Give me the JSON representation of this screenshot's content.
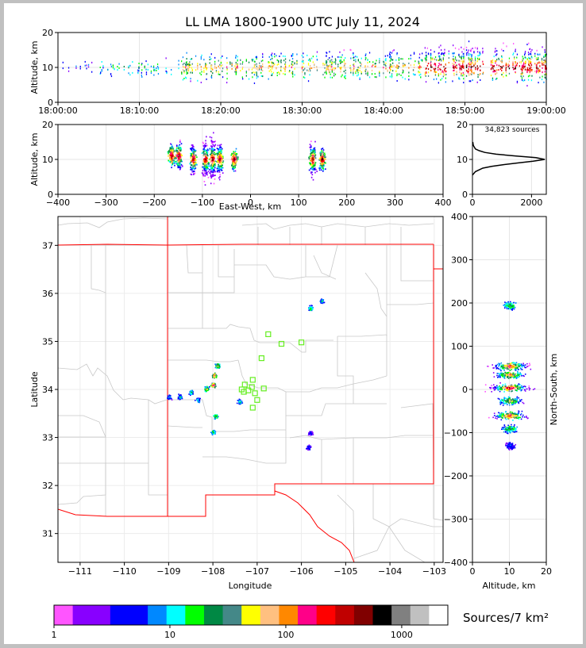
{
  "chart_data": [
    {
      "type": "heatmap",
      "panel": "altitude-time",
      "title": "LL LMA 1800-1900 UTC July 11, 2024",
      "ylabel": "Altitude, km",
      "x_tick_labels": [
        "18:00:00",
        "18:10:00",
        "18:20:00",
        "18:30:00",
        "18:40:00",
        "18:50:00",
        "19:00:00"
      ],
      "x_range_minutes": [
        0,
        60
      ],
      "ylim": [
        0,
        20
      ],
      "y_ticks": [
        0,
        10,
        20
      ],
      "grid": true,
      "activity": [
        {
          "t": [
            0,
            5
          ],
          "alt": [
            7,
            13
          ],
          "density": "sparse"
        },
        {
          "t": [
            5,
            15
          ],
          "alt": [
            6,
            13
          ],
          "density": "light"
        },
        {
          "t": [
            15,
            25
          ],
          "alt": [
            5,
            15
          ],
          "density": "moderate"
        },
        {
          "t": [
            25,
            35
          ],
          "alt": [
            5,
            16
          ],
          "density": "moderate"
        },
        {
          "t": [
            35,
            45
          ],
          "alt": [
            5,
            16
          ],
          "density": "moderate"
        },
        {
          "t": [
            45,
            60
          ],
          "alt": [
            4,
            18
          ],
          "density": "heavy"
        }
      ]
    },
    {
      "type": "heatmap",
      "panel": "altitude-east-west",
      "xlabel": "East-West, km",
      "ylabel": "Altitude, km",
      "xlim": [
        -400,
        400
      ],
      "x_ticks": [
        -400,
        -300,
        -200,
        -100,
        0,
        100,
        200,
        300,
        400
      ],
      "ylim": [
        0,
        20
      ],
      "y_ticks": [
        0,
        10,
        20
      ],
      "grid": true,
      "clusters": [
        {
          "x": -165,
          "alt_min": 8,
          "alt_max": 17,
          "peak": 11
        },
        {
          "x": -150,
          "alt_min": 8,
          "alt_max": 18,
          "peak": 11
        },
        {
          "x": -120,
          "alt_min": 6,
          "alt_max": 19,
          "peak": 10
        },
        {
          "x": -95,
          "alt_min": 2,
          "alt_max": 19,
          "peak": 10
        },
        {
          "x": -80,
          "alt_min": 1,
          "alt_max": 18,
          "peak": 10
        },
        {
          "x": -65,
          "alt_min": 3,
          "alt_max": 16,
          "peak": 10
        },
        {
          "x": -35,
          "alt_min": 6,
          "alt_max": 14,
          "peak": 10
        },
        {
          "x": 128,
          "alt_min": 5,
          "alt_max": 18,
          "peak": 10
        },
        {
          "x": 148,
          "alt_min": 7,
          "alt_max": 15,
          "peak": 10
        }
      ]
    },
    {
      "type": "line",
      "panel": "altitude-histogram",
      "annotation": "34,823 sources",
      "xlim": [
        0,
        2500
      ],
      "x_ticks": [
        0,
        2000
      ],
      "ylim": [
        0,
        20
      ],
      "y_ticks": [
        0,
        10,
        20
      ],
      "grid": true,
      "series": [
        {
          "alt": [
            5.5,
            6.5,
            7.5,
            8.0,
            8.5,
            9.0,
            9.5,
            10.0,
            10.5,
            11.0,
            11.5,
            12.0,
            12.5,
            13.0,
            14.0,
            15.0
          ],
          "count": [
            0,
            100,
            350,
            650,
            1050,
            1550,
            2050,
            2450,
            2150,
            1450,
            800,
            420,
            230,
            100,
            30,
            10
          ]
        }
      ]
    },
    {
      "type": "scatter",
      "panel": "plan-view-map",
      "xlabel": "Longitude",
      "ylabel": "Latitude",
      "xlim": [
        -111.5,
        -102.8
      ],
      "x_ticks": [
        -111,
        -110,
        -109,
        -108,
        -107,
        -106,
        -105,
        -104,
        -103
      ],
      "ylim": [
        30.4,
        37.6
      ],
      "y_ticks": [
        31,
        32,
        33,
        34,
        35,
        36,
        37
      ],
      "grid": true,
      "lightning_clusters": [
        {
          "lon": -108.75,
          "lat": 33.85,
          "intensity": 0.35
        },
        {
          "lon": -108.5,
          "lat": 33.95,
          "intensity": 0.4
        },
        {
          "lon": -108.35,
          "lat": 33.78,
          "intensity": 0.35
        },
        {
          "lon": -108.15,
          "lat": 34.02,
          "intensity": 0.6
        },
        {
          "lon": -108.0,
          "lat": 34.1,
          "intensity": 0.8
        },
        {
          "lon": -107.98,
          "lat": 34.3,
          "intensity": 0.75
        },
        {
          "lon": -107.9,
          "lat": 34.5,
          "intensity": 0.6
        },
        {
          "lon": -107.95,
          "lat": 33.45,
          "intensity": 0.5
        },
        {
          "lon": -108.0,
          "lat": 33.12,
          "intensity": 0.45
        },
        {
          "lon": -107.4,
          "lat": 33.75,
          "intensity": 0.35
        },
        {
          "lon": -105.8,
          "lat": 35.7,
          "intensity": 0.45
        },
        {
          "lon": -105.55,
          "lat": 35.85,
          "intensity": 0.35
        },
        {
          "lon": -105.8,
          "lat": 33.1,
          "intensity": 0.2
        },
        {
          "lon": -105.85,
          "lat": 32.8,
          "intensity": 0.2
        },
        {
          "lon": -109.0,
          "lat": 33.85,
          "intensity": 0.3
        }
      ],
      "lma_stations": [
        {
          "lon": -106.75,
          "lat": 35.15
        },
        {
          "lon": -106.45,
          "lat": 34.95
        },
        {
          "lon": -106.0,
          "lat": 34.98
        },
        {
          "lon": -106.9,
          "lat": 34.65
        },
        {
          "lon": -107.1,
          "lat": 34.2
        },
        {
          "lon": -107.35,
          "lat": 34.0
        },
        {
          "lon": -107.28,
          "lat": 34.1
        },
        {
          "lon": -107.2,
          "lat": 33.98
        },
        {
          "lon": -107.12,
          "lat": 34.05
        },
        {
          "lon": -107.05,
          "lat": 33.92
        },
        {
          "lon": -107.0,
          "lat": 33.78
        },
        {
          "lon": -107.1,
          "lat": 33.62
        },
        {
          "lon": -106.85,
          "lat": 34.02
        },
        {
          "lon": -107.3,
          "lat": 33.95
        }
      ]
    },
    {
      "type": "heatmap",
      "panel": "north-south-altitude",
      "xlabel": "Altitude, km",
      "ylabel": "North-South, km",
      "xlim": [
        0,
        20
      ],
      "x_ticks": [
        0,
        10,
        20
      ],
      "ylim": [
        -400,
        400
      ],
      "y_ticks": [
        -400,
        -300,
        -200,
        -100,
        0,
        100,
        200,
        300,
        400
      ],
      "grid": true,
      "clusters": [
        {
          "ns": 195,
          "alt_min": 7,
          "alt_max": 12,
          "peak": 0.45
        },
        {
          "ns": 55,
          "alt_min": 2,
          "alt_max": 16,
          "peak": 0.8
        },
        {
          "ns": 35,
          "alt_min": 3,
          "alt_max": 15,
          "peak": 0.7
        },
        {
          "ns": 5,
          "alt_min": 1,
          "alt_max": 20,
          "peak": 0.9
        },
        {
          "ns": -25,
          "alt_min": 4,
          "alt_max": 14,
          "peak": 0.6
        },
        {
          "ns": -60,
          "alt_min": 2,
          "alt_max": 16,
          "peak": 0.8
        },
        {
          "ns": -90,
          "alt_min": 6,
          "alt_max": 12,
          "peak": 0.5
        },
        {
          "ns": -130,
          "alt_min": 9,
          "alt_max": 13,
          "peak": 0.2
        }
      ]
    },
    {
      "type": "colorbar",
      "panel": "source-density-colorbar",
      "units_label": "Sources/7 km²",
      "scale": "log",
      "range": [
        1,
        2500
      ],
      "tick_labels": [
        "1",
        "10",
        "100",
        "1000"
      ],
      "tick_values": [
        1,
        10,
        100,
        1000
      ],
      "colors": [
        "#ff55ff",
        "#8800ff",
        "#8800ff",
        "#0000ff",
        "#0000ff",
        "#0088ff",
        "#00ffff",
        "#00ff00",
        "#008844",
        "#448888",
        "#ffff00",
        "#ffc080",
        "#ff8800",
        "#ff0088",
        "#ff0000",
        "#c00000",
        "#800000",
        "#000000",
        "#808080",
        "#c0c0c0",
        "#ffffff"
      ]
    }
  ]
}
